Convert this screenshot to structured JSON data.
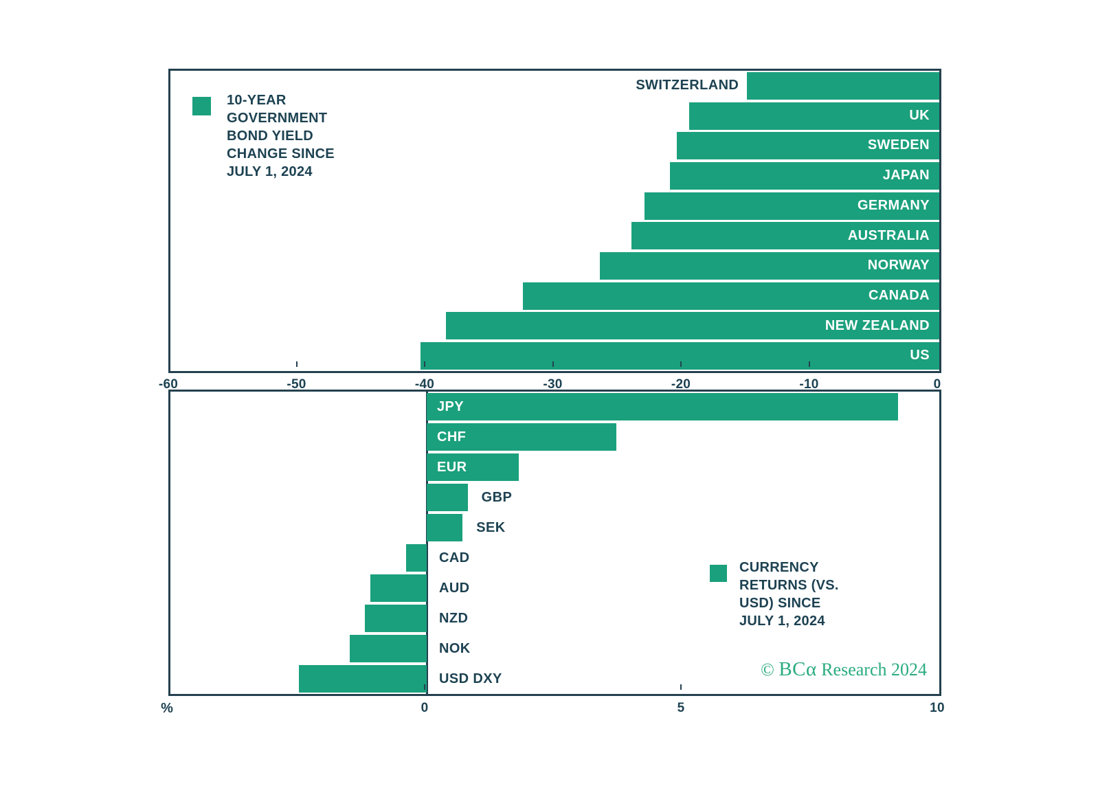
{
  "colors": {
    "bar_green": "#1aa07c",
    "dark_text": "#1d4252",
    "border": "#24414f",
    "white_label": "#ffffff",
    "logo_green": "#2aab80"
  },
  "logo": {
    "prefix": "© ",
    "brand": "BCα",
    "suffix": " Research 2024"
  },
  "chart_data": [
    {
      "type": "bar",
      "orientation": "horizontal",
      "title": "10-YEAR GOVERNMENT BOND YIELD CHANGE SINCE JULY 1, 2024",
      "legend_lines": [
        "10-YEAR",
        "GOVERNMENT",
        "BOND YIELD",
        "CHANGE SINCE",
        "JULY 1, 2024"
      ],
      "categories": [
        "SWITZERLAND",
        "UK",
        "SWEDEN",
        "JAPAN",
        "GERMANY",
        "AUSTRALIA",
        "NORWAY",
        "CANADA",
        "NEW ZEALAND",
        "US"
      ],
      "values": [
        -15,
        -19.5,
        -20.5,
        -21,
        -23,
        -24,
        -26.5,
        -32.5,
        -38.5,
        -40.5
      ],
      "xlim": [
        -60,
        0
      ],
      "xticks": [
        -60,
        -50,
        -40,
        -30,
        -20,
        -10,
        0
      ],
      "xtick_labels": [
        "-60",
        "-50",
        "-40",
        "-30",
        "-20",
        "-10",
        "0"
      ],
      "label_placement": [
        "outside-left",
        "inside-right",
        "inside-right",
        "inside-right",
        "inside-right",
        "inside-right",
        "inside-right",
        "inside-right",
        "inside-right",
        "inside-right"
      ],
      "grid": false,
      "legend_position": "top-left"
    },
    {
      "type": "bar",
      "orientation": "horizontal",
      "title": "CURRENCY RETURNS (VS. USD) SINCE JULY 1, 2024",
      "legend_lines": [
        "CURRENCY",
        "RETURNS (VS.",
        "USD) SINCE",
        "JULY 1, 2024"
      ],
      "categories": [
        "JPY",
        "CHF",
        "EUR",
        "GBP",
        "SEK",
        "CAD",
        "AUD",
        "NZD",
        "NOK",
        "USD DXY"
      ],
      "values": [
        9.2,
        3.7,
        1.8,
        0.8,
        0.7,
        -0.4,
        -1.1,
        -1.2,
        -1.5,
        -2.5
      ],
      "xlim": [
        -5,
        10
      ],
      "xticks": [
        0,
        5,
        10
      ],
      "xtick_labels": [
        "0",
        "5",
        "10"
      ],
      "x_unit_label": "%",
      "label_placement": [
        "inside-left",
        "inside-left",
        "inside-left",
        "outside-right",
        "outside-right",
        "zero-right",
        "zero-right",
        "zero-right",
        "zero-right",
        "zero-right"
      ],
      "grid": false,
      "legend_position": "middle-right"
    }
  ]
}
